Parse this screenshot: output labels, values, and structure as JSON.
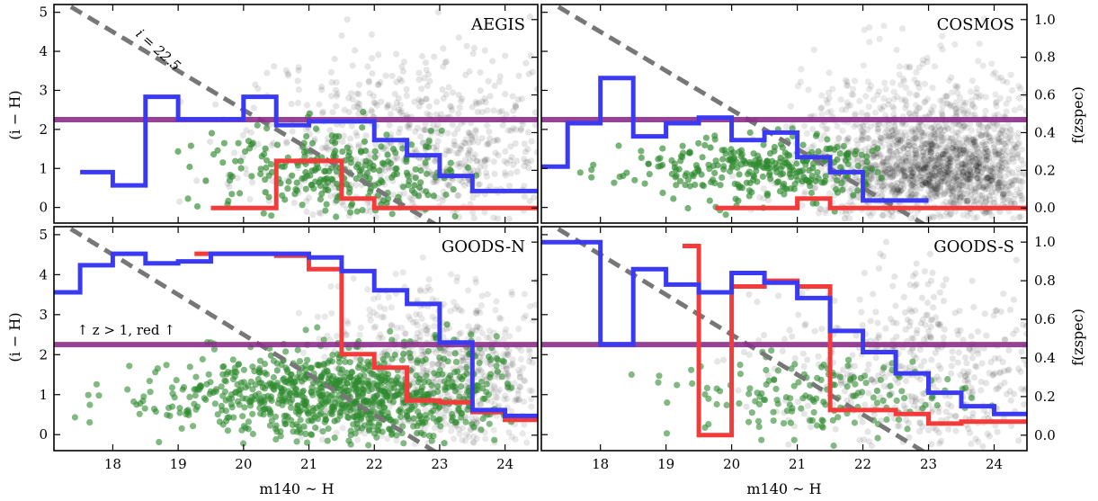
{
  "chart_data": [
    {
      "panel": "AEGIS",
      "type": "scatter",
      "title": "AEGIS",
      "xlabel": "m140 ~ H",
      "ylabel": "(i − H)",
      "y2label": "f(zspec)",
      "xlim": [
        17.1,
        24.5
      ],
      "ylim": [
        -0.4,
        5.2
      ],
      "y2lim": [
        -0.08,
        1.08
      ],
      "xticks": [
        "18",
        "19",
        "20",
        "21",
        "22",
        "23",
        "24"
      ],
      "yticks": [
        "0",
        "1",
        "2",
        "3",
        "4",
        "5"
      ],
      "y2ticks": [
        "0.0",
        "0.2",
        "0.4",
        "0.6",
        "0.8",
        "1.0"
      ],
      "show_xticklabels": false,
      "show_left_ticklabels": true,
      "show_right_ticklabels": false,
      "annotation": "i = 22.5",
      "color_cut": 2.25,
      "cut_line_offset": 22.5,
      "clouds": [
        {
          "color": "#000000",
          "n": 650,
          "alpha": 0.1,
          "xc": 22.7,
          "xs": 1.3,
          "yc": 1.6,
          "ys": 1.25,
          "xmin": 17.7,
          "xmax": 24.5,
          "seed": 11
        },
        {
          "color": "#2e8b2e",
          "n": 260,
          "alpha": 0.65,
          "xc": 21.6,
          "xs": 1.1,
          "yc": 0.85,
          "ys": 0.6,
          "xmin": 18.9,
          "xmax": 23.6,
          "seed": 12
        }
      ],
      "fraction_steps": {
        "total": {
          "x": [
            17.5,
            18.0,
            18.5,
            19.0,
            19.5,
            20.0,
            20.5,
            21.0,
            21.5,
            22.0,
            22.5,
            23.0,
            23.5,
            24.0
          ],
          "f": [
            0.19,
            0.12,
            0.59,
            0.47,
            0.47,
            0.59,
            0.44,
            0.46,
            0.46,
            0.36,
            0.28,
            0.17,
            0.09,
            0.09
          ]
        },
        "red": {
          "x": [
            19.5,
            20.0,
            20.5,
            21.0,
            21.5,
            22.0,
            22.5,
            23.0,
            23.5,
            24.0
          ],
          "f": [
            0.0,
            0.0,
            0.25,
            0.25,
            0.05,
            0.0,
            0.0,
            0.0,
            0.0,
            0.0
          ]
        }
      }
    },
    {
      "panel": "COSMOS",
      "type": "scatter",
      "title": "COSMOS",
      "xlabel": "m140 ~ H",
      "ylabel": "(i − H)",
      "y2label": "f(zspec)",
      "xlim": [
        17.1,
        24.5
      ],
      "ylim": [
        -0.4,
        5.2
      ],
      "y2lim": [
        -0.08,
        1.08
      ],
      "xticks": [
        "18",
        "19",
        "20",
        "21",
        "22",
        "23",
        "24"
      ],
      "yticks": [
        "0",
        "1",
        "2",
        "3",
        "4",
        "5"
      ],
      "y2ticks": [
        "0.0",
        "0.2",
        "0.4",
        "0.6",
        "0.8",
        "1.0"
      ],
      "show_xticklabels": false,
      "show_left_ticklabels": false,
      "show_right_ticklabels": true,
      "annotation": "",
      "color_cut": 2.25,
      "cut_line_offset": 22.5,
      "clouds": [
        {
          "color": "#000000",
          "n": 1200,
          "alpha": 0.09,
          "xc": 23.1,
          "xs": 1.0,
          "yc": 1.2,
          "ys": 1.1,
          "xmin": 17.6,
          "xmax": 24.5,
          "seed": 21
        },
        {
          "color": "#000000",
          "n": 500,
          "alpha": 0.12,
          "xc": 23.2,
          "xs": 0.7,
          "yc": 0.9,
          "ys": 0.5,
          "xmin": 20.5,
          "xmax": 24.5,
          "seed": 22
        },
        {
          "color": "#2e8b2e",
          "n": 300,
          "alpha": 0.65,
          "xc": 20.4,
          "xs": 1.0,
          "yc": 1.0,
          "ys": 0.4,
          "xmin": 17.5,
          "xmax": 22.4,
          "seed": 23
        }
      ],
      "fraction_steps": {
        "total": {
          "x": [
            17.0,
            17.5,
            18.0,
            18.5,
            19.0,
            19.5,
            20.0,
            20.5,
            21.0,
            21.5,
            22.0,
            22.5
          ],
          "f": [
            0.22,
            0.45,
            0.69,
            0.38,
            0.45,
            0.48,
            0.36,
            0.4,
            0.27,
            0.19,
            0.04,
            0.04
          ]
        },
        "red": {
          "x": [
            19.75,
            20.5,
            21.0,
            21.5,
            22.0,
            22.5,
            23.0,
            23.5,
            24.0
          ],
          "f": [
            0.0,
            0.0,
            0.05,
            0.0,
            0.0,
            0.0,
            0.0,
            0.0,
            0.0
          ]
        }
      }
    },
    {
      "panel": "GOODS-N",
      "type": "scatter",
      "title": "GOODS-N",
      "xlabel": "m140 ~ H",
      "ylabel": "(i − H)",
      "y2label": "f(zspec)",
      "xlim": [
        17.1,
        24.5
      ],
      "ylim": [
        -0.4,
        5.2
      ],
      "y2lim": [
        -0.08,
        1.08
      ],
      "xticks": [
        "18",
        "19",
        "20",
        "21",
        "22",
        "23",
        "24"
      ],
      "yticks": [
        "0",
        "1",
        "2",
        "3",
        "4",
        "5"
      ],
      "y2ticks": [
        "0.0",
        "0.2",
        "0.4",
        "0.6",
        "0.8",
        "1.0"
      ],
      "show_xticklabels": true,
      "show_left_ticklabels": true,
      "show_right_ticklabels": false,
      "annotation": "↑ z > 1, red ↑",
      "color_cut": 2.25,
      "cut_line_offset": 22.5,
      "clouds": [
        {
          "color": "#000000",
          "n": 700,
          "alpha": 0.09,
          "xc": 23.2,
          "xs": 1.0,
          "yc": 1.5,
          "ys": 1.1,
          "xmin": 18.5,
          "xmax": 24.5,
          "seed": 31
        },
        {
          "color": "#2e8b2e",
          "n": 900,
          "alpha": 0.6,
          "xc": 21.5,
          "xs": 1.4,
          "yc": 1.0,
          "ys": 0.6,
          "xmin": 17.2,
          "xmax": 24.1,
          "seed": 32
        }
      ],
      "fraction_steps": {
        "total": {
          "x": [
            17.0,
            17.5,
            18.0,
            18.5,
            19.0,
            19.5,
            20.0,
            20.5,
            21.0,
            21.5,
            22.0,
            22.5,
            23.0,
            23.5,
            24.0
          ],
          "f": [
            0.74,
            0.88,
            0.94,
            0.89,
            0.9,
            0.94,
            0.94,
            0.94,
            0.92,
            0.85,
            0.75,
            0.68,
            0.48,
            0.13,
            0.1
          ]
        },
        "red": {
          "x": [
            19.25,
            20.0,
            20.5,
            21.0,
            21.5,
            22.0,
            22.5,
            23.0,
            23.5,
            24.0
          ],
          "f": [
            0.94,
            0.94,
            0.93,
            0.86,
            0.42,
            0.35,
            0.18,
            0.17,
            0.12,
            0.08
          ]
        }
      }
    },
    {
      "panel": "GOODS-S",
      "type": "scatter",
      "title": "GOODS-S",
      "xlabel": "m140 ~ H",
      "ylabel": "(i − H)",
      "y2label": "f(zspec)",
      "xlim": [
        17.1,
        24.5
      ],
      "ylim": [
        -0.4,
        5.2
      ],
      "y2lim": [
        -0.08,
        1.08
      ],
      "xticks": [
        "18",
        "19",
        "20",
        "21",
        "22",
        "23",
        "24"
      ],
      "yticks": [
        "0",
        "1",
        "2",
        "3",
        "4",
        "5"
      ],
      "y2ticks": [
        "0.0",
        "0.2",
        "0.4",
        "0.6",
        "0.8",
        "1.0"
      ],
      "show_xticklabels": true,
      "show_left_ticklabels": false,
      "show_right_ticklabels": true,
      "annotation": "",
      "color_cut": 2.25,
      "cut_line_offset": 22.5,
      "clouds": [
        {
          "color": "#000000",
          "n": 450,
          "alpha": 0.1,
          "xc": 23.0,
          "xs": 1.2,
          "yc": 1.6,
          "ys": 1.2,
          "xmin": 18.5,
          "xmax": 24.5,
          "seed": 41
        },
        {
          "color": "#2e8b2e",
          "n": 160,
          "alpha": 0.6,
          "xc": 21.3,
          "xs": 1.2,
          "yc": 1.0,
          "ys": 0.55,
          "xmin": 18.2,
          "xmax": 24.0,
          "seed": 42
        }
      ],
      "fraction_steps": {
        "total": {
          "x": [
            17.0,
            18.0,
            18.5,
            19.0,
            19.5,
            20.0,
            20.5,
            21.0,
            21.5,
            22.0,
            22.5,
            23.0,
            23.5,
            24.0
          ],
          "f": [
            1.0,
            0.47,
            0.86,
            0.78,
            0.74,
            0.84,
            0.79,
            0.71,
            0.54,
            0.43,
            0.32,
            0.22,
            0.15,
            0.11
          ]
        },
        "red": {
          "x": [
            19.25,
            19.5,
            20.0,
            20.5,
            21.0,
            21.5,
            22.0,
            22.5,
            23.0,
            23.5,
            24.0
          ],
          "f": [
            0.98,
            0.0,
            0.77,
            0.8,
            0.77,
            0.13,
            0.13,
            0.11,
            0.06,
            0.07,
            0.07
          ]
        }
      }
    }
  ],
  "style": {
    "total_color": "#3a3af5",
    "red_color": "#f53a3a",
    "cut_color": "#8b2f8b",
    "diag_color": "#777777"
  }
}
